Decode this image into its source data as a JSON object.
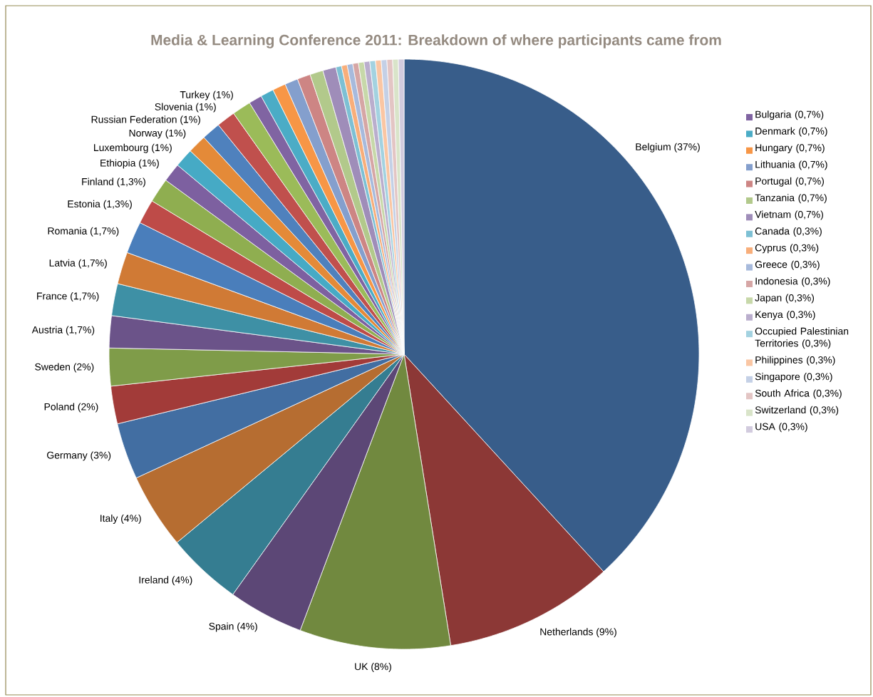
{
  "chart_data": {
    "type": "pie",
    "title": "Media & Learning Conference 2011: Breakdown of where participants came from",
    "categories": [
      null,
      null,
      null,
      null,
      null,
      null,
      null,
      null,
      null,
      null,
      null,
      null,
      null,
      null,
      null,
      null,
      null,
      null,
      null,
      null,
      null,
      "Bulgaria (0,7%)",
      "Denmark (0,7%)",
      "Hungary (0,7%)",
      "Lithuania (0,7%)",
      "Portugal (0,7%)",
      "Tanzania (0,7%)",
      "Vietnam (0,7%)",
      "Canada (0,3%)",
      "Cyprus (0,3%)",
      "Greece (0,3%)",
      "Indonesia (0,3%)",
      "Japan (0,3%)",
      "Kenya (0,3%)",
      "Occupied Palestinian Territories (0,3%)",
      "Philippines (0,3%)",
      "Singapore (0,3%)",
      "South Africa (0,3%)",
      "Switzerland (0,3%)",
      "USA (0,3%)"
    ],
    "values": [
      37,
      9,
      8,
      4,
      4,
      4,
      3,
      2,
      2,
      1.7,
      1.7,
      1.7,
      1.7,
      1.3,
      1.3,
      1,
      1,
      1,
      1,
      1,
      1,
      0.7,
      0.7,
      0.7,
      0.7,
      0.7,
      0.7,
      0.7,
      0.3,
      0.3,
      0.3,
      0.3,
      0.3,
      0.3,
      0.3,
      0.3,
      0.3,
      0.3,
      0.3,
      0.3
    ],
    "value_labels": [
      "Belgium (37%)",
      "Netherlands (9%)",
      "UK (8%)",
      "Spain (4%)",
      "Ireland (4%)",
      "Italy (4%)",
      "Germany (3%)",
      "Poland (2%)",
      "Sweden (2%)",
      "Austria (1,7%)",
      "France (1,7%)",
      "Latvia (1,7%)",
      "Romania (1,7%)",
      "Estonia (1,3%)",
      "Finland (1,3%)",
      "Ethiopia (1%)",
      "Luxembourg (1%)",
      "Norway (1%)",
      "Russian Federation (1%)",
      "Slovenia (1%)",
      "Turkey (1%)",
      null,
      null,
      null,
      null,
      null,
      null,
      null,
      null,
      null,
      null,
      null,
      null,
      null,
      null,
      null,
      null,
      null,
      null,
      null
    ],
    "colors": [
      "#385d8a",
      "#8c3836",
      "#71893f",
      "#5c4776",
      "#357d91",
      "#b66d31",
      "#426ea2",
      "#a23b39",
      "#7f9c49",
      "#6b5389",
      "#3e90a5",
      "#d07a35",
      "#4a7ebb",
      "#be4b48",
      "#8fae50",
      "#7d60a0",
      "#46aac5",
      "#e48a38",
      "#4f81bd",
      "#c0504d",
      "#9bbb59",
      "#8064a2",
      "#4bacc6",
      "#f79646",
      "#849fcd",
      "#cd8584",
      "#b2c98b",
      "#9f8db9",
      "#7dc0d4",
      "#f8ae7a",
      "#a7badc",
      "#d6a6a5",
      "#c7d8a9",
      "#baaecd",
      "#a3d2e0",
      "#fac6a3",
      "#c4d0e6",
      "#e3c5c4",
      "#d9e4c9",
      "#d2cbde"
    ],
    "legend": "right"
  }
}
